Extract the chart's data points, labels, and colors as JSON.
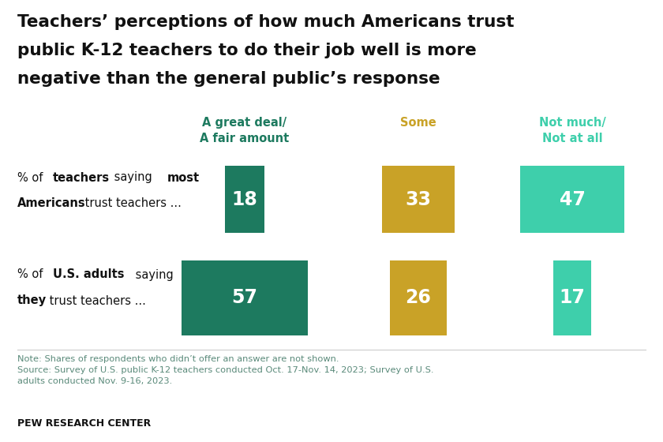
{
  "title_line1": "Teachers’ perceptions of how much Americans trust",
  "title_line2": "public K-12 teachers to do their job well is more",
  "title_line3": "negative than the general public’s response",
  "title_fontsize": 15.5,
  "background_color": "#ffffff",
  "col_headers": [
    "A great deal/\nA fair amount",
    "Some",
    "Not much/\nNot at all"
  ],
  "col_header_colors": [
    "#1d7a5f",
    "#c9a227",
    "#3ecfab"
  ],
  "col_header_fontsize": 10.5,
  "values": [
    [
      18,
      33,
      47
    ],
    [
      57,
      26,
      17
    ]
  ],
  "bar_colors": [
    "#1d7a5f",
    "#c9a227",
    "#3ecfab"
  ],
  "note_text": "Note: Shares of respondents who didn’t offer an answer are not shown.\nSource: Survey of U.S. public K-12 teachers conducted Oct. 17-Nov. 14, 2023; Survey of U.S.\nadults conducted Nov. 9-16, 2023.",
  "footer_text": "PEW RESEARCH CENTER",
  "note_color": "#5a8a7a",
  "footer_fontsize": 9
}
